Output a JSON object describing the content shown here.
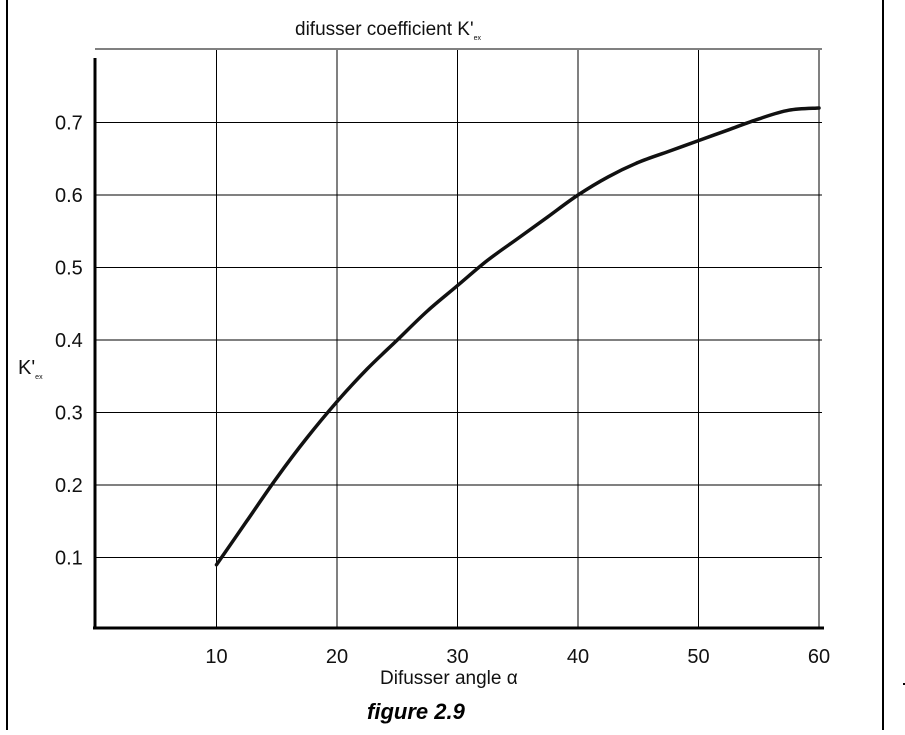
{
  "chart_data": {
    "type": "line",
    "title": "difusser coefficient K'",
    "title_subscript": "ex",
    "xlabel": "Difusser angle α",
    "ylabel": "K'",
    "ylabel_subscript": "ex",
    "xlim": [
      0,
      60
    ],
    "ylim": [
      0,
      0.8
    ],
    "grid": true,
    "x_ticks": [
      "10",
      "20",
      "30",
      "40",
      "50",
      "60"
    ],
    "y_ticks": [
      "0.1",
      "0.2",
      "0.3",
      "0.4",
      "0.5",
      "0.6",
      "0.7"
    ],
    "series": [
      {
        "x": [
          10,
          12.5,
          15,
          17.5,
          20,
          22.5,
          25,
          27.5,
          30,
          32.5,
          35,
          37.5,
          40,
          42.5,
          45,
          47.5,
          50,
          52.5,
          55,
          57.5,
          60
        ],
        "y": [
          0.09,
          0.15,
          0.21,
          0.265,
          0.315,
          0.36,
          0.4,
          0.44,
          0.475,
          0.51,
          0.54,
          0.57,
          0.6,
          0.625,
          0.645,
          0.66,
          0.675,
          0.69,
          0.705,
          0.717,
          0.72
        ]
      }
    ]
  },
  "caption": "figure 2.9"
}
